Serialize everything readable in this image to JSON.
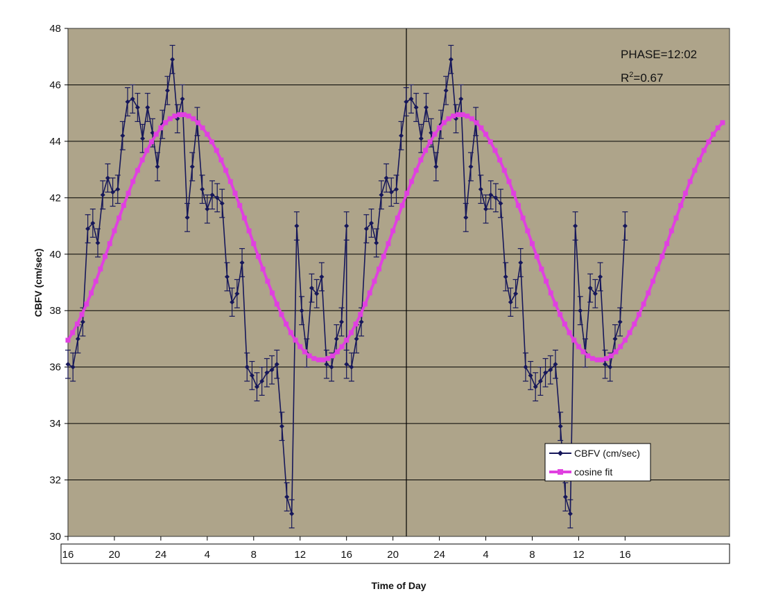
{
  "chart_data": {
    "type": "line",
    "title": "",
    "xlabel": "Time of Day",
    "ylabel": "CBFV (cm/sec)",
    "ylim": [
      30,
      48
    ],
    "yticks": [
      30,
      32,
      34,
      36,
      38,
      40,
      42,
      44,
      46,
      48
    ],
    "xlim": [
      0,
      57
    ],
    "xticks": [
      {
        "t": 0,
        "label": "16"
      },
      {
        "t": 4,
        "label": "20"
      },
      {
        "t": 8,
        "label": "24"
      },
      {
        "t": 12,
        "label": "4"
      },
      {
        "t": 16,
        "label": "8"
      },
      {
        "t": 20,
        "label": "12"
      },
      {
        "t": 24,
        "label": "16"
      },
      {
        "t": 28,
        "label": "20"
      },
      {
        "t": 32,
        "label": "24"
      },
      {
        "t": 36,
        "label": "4"
      },
      {
        "t": 40,
        "label": "8"
      },
      {
        "t": 44,
        "label": "12"
      },
      {
        "t": 48,
        "label": "16"
      }
    ],
    "grid": "horizontal",
    "legend_position": "bottom-right",
    "annotations": {
      "phase": "PHASE=12:02",
      "r2_prefix": "R",
      "r2_sup": "2",
      "r2_value": "=0.67"
    },
    "series": [
      {
        "name": "CBFV (cm/sec)",
        "color": "#16175a",
        "error": 0.5,
        "x": [
          0.0,
          0.43,
          0.86,
          1.28,
          1.71,
          2.14,
          2.57,
          3.0,
          3.43,
          3.86,
          4.29,
          4.71,
          5.14,
          5.57,
          6.0,
          6.43,
          6.86,
          7.29,
          7.71,
          8.14,
          8.57,
          9.0,
          9.43,
          9.86,
          10.28,
          10.71,
          11.14,
          11.57,
          12.0,
          12.43,
          12.86,
          13.28,
          13.71,
          14.14,
          14.57,
          15.0,
          15.43,
          15.86,
          16.28,
          16.71,
          17.14,
          17.57,
          18.0,
          18.43,
          18.86,
          19.28,
          19.71,
          20.14,
          20.57,
          21.0,
          21.43,
          21.86,
          22.28,
          22.71,
          23.14,
          23.57,
          24.0
        ],
        "y": [
          36.1,
          36.0,
          37.0,
          37.6,
          40.9,
          41.1,
          40.4,
          42.1,
          42.7,
          42.2,
          42.3,
          44.2,
          45.4,
          45.5,
          45.2,
          44.1,
          45.2,
          44.3,
          43.1,
          44.6,
          45.8,
          46.9,
          44.8,
          45.5,
          41.3,
          43.1,
          44.7,
          42.3,
          41.6,
          42.1,
          42.0,
          41.8,
          39.2,
          38.3,
          38.6,
          39.7,
          36.0,
          35.7,
          35.3,
          35.5,
          35.8,
          35.9,
          36.1,
          33.9,
          31.4,
          30.8,
          41.0,
          38.0,
          36.5,
          38.8,
          38.6,
          39.2,
          36.1,
          36.0,
          37.0,
          37.6,
          41.0
        ],
        "repeat_period": 24
      },
      {
        "name": "cosine fit",
        "color": "#e040e0",
        "mesor": 40.6,
        "amplitude": 4.35,
        "acrophase_t": 9.8,
        "period": 24,
        "x_start": 0,
        "x_end": 56.4,
        "x_step": 0.4
      }
    ]
  }
}
